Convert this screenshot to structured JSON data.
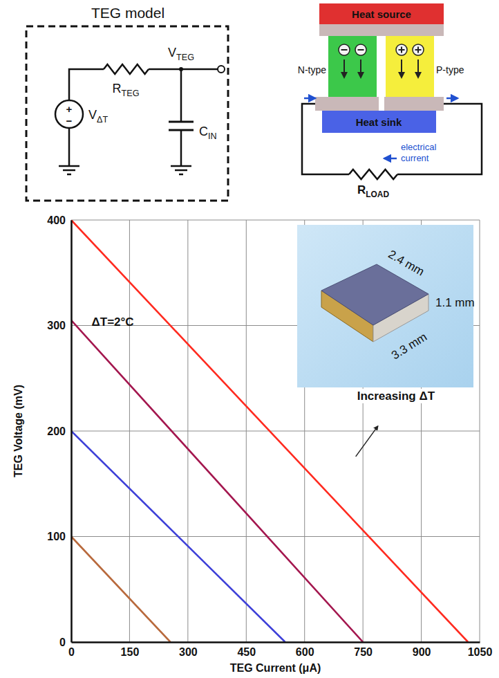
{
  "chart_data": {
    "type": "line",
    "xlabel": "TEG Current (μA)",
    "ylabel": "TEG Voltage (mV)",
    "xlim": [
      0,
      1050
    ],
    "xticks": [
      0,
      150,
      300,
      450,
      600,
      750,
      900,
      1050
    ],
    "ylim": [
      0,
      400
    ],
    "yticks": [
      0,
      100,
      200,
      300,
      400
    ],
    "grid": true,
    "series": [
      {
        "color": "#b8693c",
        "x": [
          0,
          255
        ],
        "values": [
          100,
          0
        ]
      },
      {
        "color": "#3d3fd8",
        "x": [
          0,
          550
        ],
        "values": [
          200,
          0
        ]
      },
      {
        "color": "#a3164e",
        "x": [
          0,
          750
        ],
        "values": [
          305,
          0
        ]
      },
      {
        "color": "#ff2a1f",
        "x": [
          0,
          1020
        ],
        "values": [
          400,
          0
        ]
      }
    ],
    "annotations": [
      {
        "text": "ΔT=2°C"
      },
      {
        "text": "Increasing ΔT"
      }
    ],
    "inset": {
      "labels": [
        "2.4 mm",
        "1.1 mm",
        "3.3 mm"
      ]
    }
  },
  "diagrams": {
    "teg_model": {
      "title": "TEG model",
      "source": {
        "label": "V",
        "sub": "ΔT"
      },
      "source_signs": [
        "+",
        "−"
      ],
      "resistor": {
        "label": "R",
        "sub": "TEG"
      },
      "node": {
        "label": "V",
        "sub": "TEG"
      },
      "capacitor": {
        "label": "C",
        "sub": "IN"
      }
    },
    "teg_device": {
      "heat_source": "Heat source",
      "n_type": "N-type",
      "p_type": "P-type",
      "heat_sink": "Heat sink",
      "current": "electrical current",
      "load": {
        "label": "R",
        "sub": "LOAD"
      }
    }
  }
}
